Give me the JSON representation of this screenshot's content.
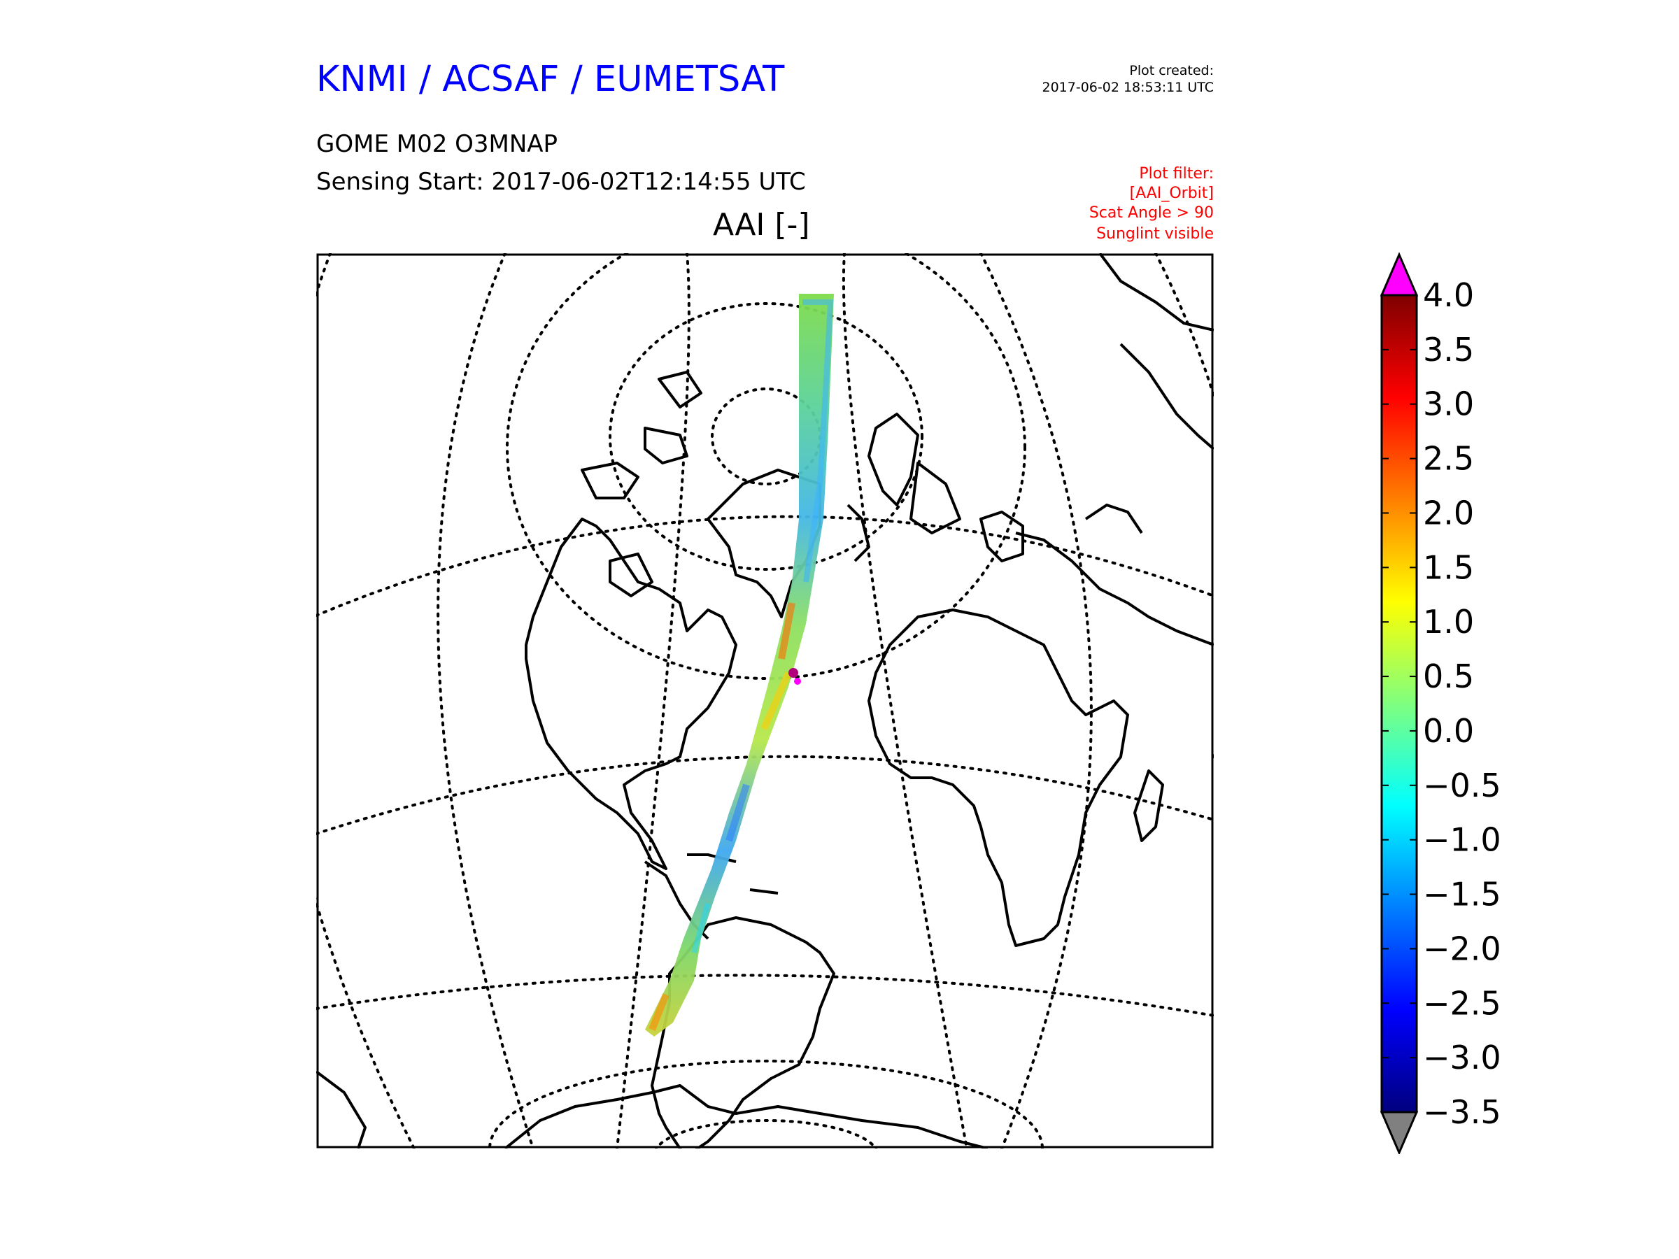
{
  "header": {
    "org_title": "KNMI / ACSAF / EUMETSAT",
    "plot_created_label": "Plot created:",
    "plot_created_value": "2017-06-02 18:53:11 UTC",
    "product_name": "GOME M02 O3MNAP",
    "sensing_start": "Sensing Start: 2017-06-02T12:14:55 UTC",
    "map_title": "AAI [-]"
  },
  "plot_filter": [
    "Plot filter:",
    "[AAI_Orbit]",
    "Scat Angle > 90",
    "Sunglint visible"
  ],
  "colorbar": {
    "ticks": [
      "4.0",
      "3.5",
      "3.0",
      "2.5",
      "2.0",
      "1.5",
      "1.0",
      "0.5",
      "0.0",
      "−0.5",
      "−1.0",
      "−1.5",
      "−2.0",
      "−2.5",
      "−3.0",
      "−3.5"
    ],
    "colormap": [
      "#00007f",
      "#0000ff",
      "#007fff",
      "#00ffff",
      "#7fff7f",
      "#ffff00",
      "#ff7f00",
      "#ff0000",
      "#7f0000"
    ],
    "over_color": "#ff00ff",
    "under_color": "#808080"
  },
  "colors": {
    "org_title": "#0000ff",
    "plot_filter": "#ff0000"
  }
}
